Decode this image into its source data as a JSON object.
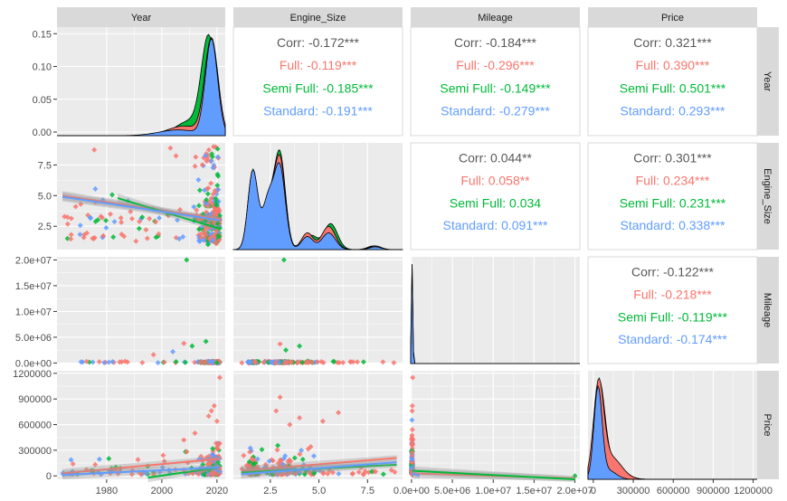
{
  "chart_data": {
    "type": "scatter-matrix",
    "variables": [
      "Year",
      "Engine_Size",
      "Mileage",
      "Price"
    ],
    "groups": [
      {
        "name": "Full",
        "color": "#F8766D"
      },
      {
        "name": "Semi Full",
        "color": "#00BA38"
      },
      {
        "name": "Standard",
        "color": "#619CFF"
      }
    ],
    "overall_color": "#595959",
    "correlations": [
      {
        "row": "Year",
        "col": "Engine_Size",
        "lines": [
          "Corr: -0.172***",
          "Full: -0.119***",
          "Semi Full: -0.185***",
          "Standard: -0.191***"
        ]
      },
      {
        "row": "Year",
        "col": "Mileage",
        "lines": [
          "Corr: -0.184***",
          "Full: -0.296***",
          "Semi Full: -0.149***",
          "Standard: -0.279***"
        ]
      },
      {
        "row": "Year",
        "col": "Price",
        "lines": [
          "Corr: 0.321***",
          "Full: 0.390***",
          "Semi Full: 0.501***",
          "Standard: 0.293***"
        ]
      },
      {
        "row": "Engine_Size",
        "col": "Mileage",
        "lines": [
          "Corr: 0.044**",
          "Full: 0.058**",
          "Semi Full: 0.034",
          "Standard: 0.091***"
        ]
      },
      {
        "row": "Engine_Size",
        "col": "Price",
        "lines": [
          "Corr: 0.301***",
          "Full: 0.234***",
          "Semi Full: 0.231***",
          "Standard: 0.338***"
        ]
      },
      {
        "row": "Mileage",
        "col": "Price",
        "lines": [
          "Corr: -0.122***",
          "Full: -0.218***",
          "Semi Full: -0.119***",
          "Standard: -0.174***"
        ]
      }
    ],
    "year_density_yticks": [
      "0.00",
      "0.05",
      "0.10",
      "0.15"
    ],
    "row_tick_labels": {
      "Engine_Size": [
        "2.5",
        "5.0",
        "7.5"
      ],
      "Mileage": [
        "0.0e+00",
        "5.0e+06",
        "1.0e+07",
        "1.5e+07",
        "2.0e+07"
      ],
      "Price": [
        "0",
        "300000",
        "600000",
        "900000",
        "1200000"
      ]
    },
    "col_tick_labels": {
      "Year": [
        "1980",
        "2000",
        "2020"
      ],
      "Engine_Size": [
        "2.5",
        "5.0",
        "7.5"
      ],
      "Mileage": [
        "0.0e+00",
        "5.0e+06",
        "1.0e+07",
        "1.5e+07",
        "2.0e+07"
      ],
      "Price": [
        "0",
        "300000",
        "600000",
        "900000",
        "1200000"
      ]
    },
    "ranges": {
      "Year": [
        1962,
        2023
      ],
      "Engine_Size": [
        0.6,
        9.3
      ],
      "Mileage": [
        -100000,
        20600000
      ],
      "Price": [
        -40000,
        1230000
      ],
      "year_density": [
        0,
        0.16
      ]
    },
    "year_density_peak": {
      "x": 2018,
      "y": 0.155
    },
    "regression_lines": {
      "Engine_Size~Year": [
        {
          "group": "Full",
          "from": [
            1964,
            5.0
          ],
          "to": [
            2021,
            3.1
          ]
        },
        {
          "group": "Semi Full",
          "from": [
            1984,
            4.8
          ],
          "to": [
            2021,
            2.3
          ]
        },
        {
          "group": "Standard",
          "from": [
            1964,
            4.9
          ],
          "to": [
            2021,
            3.0
          ]
        }
      ],
      "Price~Year": [
        {
          "group": "Full",
          "from": [
            1964,
            30000
          ],
          "to": [
            2021,
            200000
          ]
        },
        {
          "group": "Semi Full",
          "from": [
            1995,
            -20000
          ],
          "to": [
            2021,
            100000
          ]
        },
        {
          "group": "Standard",
          "from": [
            1964,
            10000
          ],
          "to": [
            2021,
            100000
          ]
        }
      ],
      "Price~Engine_Size": [
        {
          "group": "Full",
          "from": [
            1.0,
            60000
          ],
          "to": [
            9.0,
            210000
          ]
        },
        {
          "group": "Semi Full",
          "from": [
            1.0,
            40000
          ],
          "to": [
            9.0,
            130000
          ]
        },
        {
          "group": "Standard",
          "from": [
            1.0,
            20000
          ],
          "to": [
            9.0,
            160000
          ]
        }
      ],
      "Price~Mileage": [
        {
          "group": "Full",
          "from": [
            0,
            30000
          ],
          "to": [
            20000000,
            -30000
          ]
        },
        {
          "group": "Semi Full",
          "from": [
            0,
            60000
          ],
          "to": [
            20000000,
            -40000
          ]
        },
        {
          "group": "Standard",
          "from": [
            0,
            30000
          ],
          "to": [
            1000000,
            0
          ]
        }
      ]
    },
    "notable_points": {
      "Mileage~Year": [
        {
          "group": "Semi Full",
          "x": 2009,
          "y": 20000000
        },
        {
          "group": "Semi Full",
          "x": 2016,
          "y": 4200000
        },
        {
          "group": "Full",
          "x": 2008,
          "y": 3800000
        },
        {
          "group": "Semi Full",
          "x": 2011,
          "y": 3300000
        },
        {
          "group": "Standard",
          "x": 2004,
          "y": 2200000
        },
        {
          "group": "Full",
          "x": 1997,
          "y": 1600000
        }
      ],
      "Mileage~Engine_Size": [
        {
          "group": "Semi Full",
          "x": 3.2,
          "y": 20000000
        },
        {
          "group": "Full",
          "x": 3.0,
          "y": 3700000
        },
        {
          "group": "Semi Full",
          "x": 4.0,
          "y": 3300000
        },
        {
          "group": "Semi Full",
          "x": 3.3,
          "y": 2500000
        }
      ],
      "Price~Year": [
        {
          "group": "Full",
          "x": 2021,
          "y": 1150000
        },
        {
          "group": "Full",
          "x": 2019,
          "y": 820000
        },
        {
          "group": "Full",
          "x": 2018,
          "y": 760000
        },
        {
          "group": "Full",
          "x": 2017,
          "y": 700000
        },
        {
          "group": "Full",
          "x": 2020,
          "y": 640000
        },
        {
          "group": "Full",
          "x": 2012,
          "y": 500000
        },
        {
          "group": "Full",
          "x": 2008,
          "y": 420000
        }
      ],
      "Price~Engine_Size": [
        {
          "group": "Full",
          "x": 3.0,
          "y": 920000
        },
        {
          "group": "Full",
          "x": 2.8,
          "y": 760000
        },
        {
          "group": "Full",
          "x": 4.0,
          "y": 680000
        },
        {
          "group": "Full",
          "x": 6.0,
          "y": 740000
        },
        {
          "group": "Full",
          "x": 5.2,
          "y": 640000
        },
        {
          "group": "Full",
          "x": 3.5,
          "y": 600000
        }
      ],
      "Price~Mileage": [
        {
          "group": "Full",
          "x": 150000,
          "y": 1150000
        },
        {
          "group": "Full",
          "x": 100000,
          "y": 820000
        },
        {
          "group": "Full",
          "x": 80000,
          "y": 760000
        },
        {
          "group": "Semi Full",
          "x": 20000000,
          "y": 0
        }
      ]
    }
  }
}
